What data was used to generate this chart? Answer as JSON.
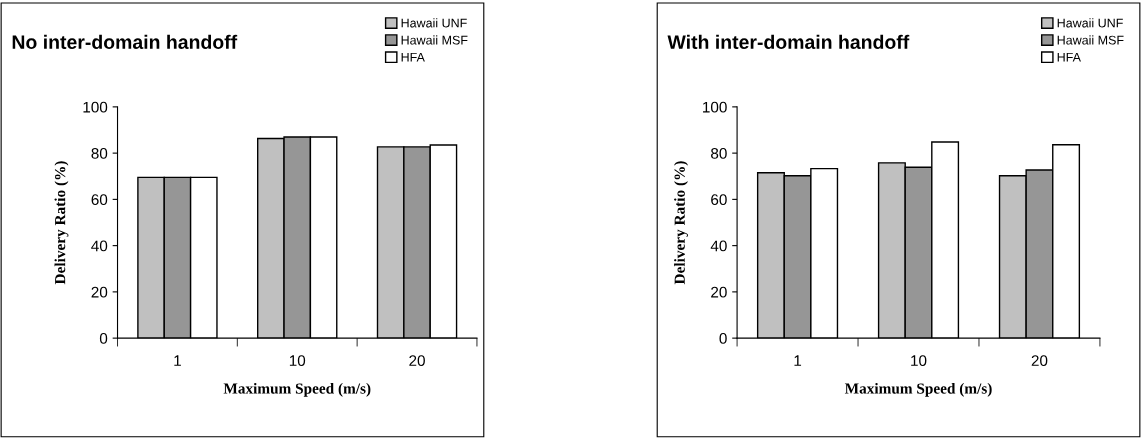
{
  "chart_data": [
    {
      "type": "bar",
      "title": "No inter-domain handoff",
      "xlabel": "Maximum Speed (m/s)",
      "ylabel": "Delivery Ratio (%)",
      "categories": [
        "1",
        "10",
        "20"
      ],
      "series": [
        {
          "name": "Hawaii UNF",
          "color": "#c0c0c0",
          "values": [
            69.5,
            86.3,
            82.7
          ]
        },
        {
          "name": "Hawaii MSF",
          "color": "#969696",
          "values": [
            69.5,
            87.0,
            82.7
          ]
        },
        {
          "name": "HFA",
          "color": "#ffffff",
          "values": [
            69.5,
            87.0,
            83.5
          ]
        }
      ],
      "ylim": [
        0,
        100
      ],
      "yticks": [
        0,
        20,
        40,
        60,
        80,
        100
      ],
      "grid": false,
      "legend": "top right"
    },
    {
      "type": "bar",
      "title": "With inter-domain handoff",
      "xlabel": "Maximum Speed (m/s)",
      "ylabel": "Delivery Ratio (%)",
      "categories": [
        "1",
        "10",
        "20"
      ],
      "series": [
        {
          "name": "Hawaii UNF",
          "color": "#c0c0c0",
          "values": [
            71.5,
            75.8,
            70.2
          ]
        },
        {
          "name": "Hawaii MSF",
          "color": "#969696",
          "values": [
            70.2,
            73.9,
            72.7
          ]
        },
        {
          "name": "HFA",
          "color": "#ffffff",
          "values": [
            73.3,
            84.8,
            83.6
          ]
        }
      ],
      "ylim": [
        0,
        100
      ],
      "yticks": [
        0,
        20,
        40,
        60,
        80,
        100
      ],
      "grid": false,
      "legend": "top right"
    }
  ]
}
